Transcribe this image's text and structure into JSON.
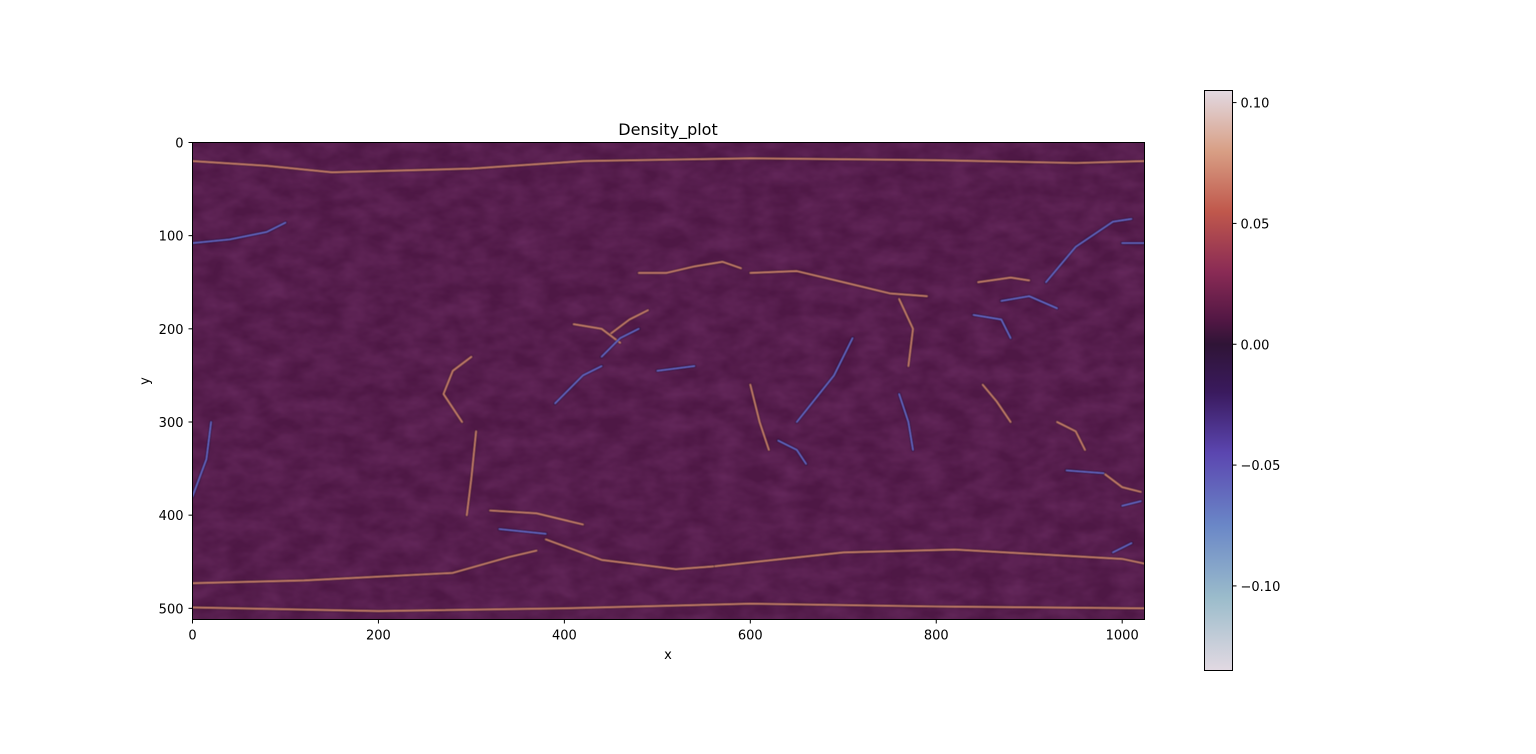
{
  "chart_data": {
    "type": "heatmap",
    "title": "Density_plot",
    "xlabel": "x",
    "ylabel": "y",
    "xlim": [
      0,
      1024
    ],
    "ylim": [
      512,
      0
    ],
    "y_inverted": true,
    "x_ticks": [
      {
        "value": 0,
        "label": "0"
      },
      {
        "value": 200,
        "label": "200"
      },
      {
        "value": 400,
        "label": "400"
      },
      {
        "value": 600,
        "label": "600"
      },
      {
        "value": 800,
        "label": "800"
      },
      {
        "value": 1000,
        "label": "1000"
      }
    ],
    "y_ticks": [
      {
        "value": 0,
        "label": "0"
      },
      {
        "value": 100,
        "label": "100"
      },
      {
        "value": 200,
        "label": "200"
      },
      {
        "value": 300,
        "label": "300"
      },
      {
        "value": 400,
        "label": "400"
      },
      {
        "value": 500,
        "label": "500"
      }
    ],
    "colorbar": {
      "vmin": -0.135,
      "vmax": 0.105,
      "ticks": [
        {
          "value": 0.1,
          "label": "0.10"
        },
        {
          "value": 0.05,
          "label": "0.05"
        },
        {
          "value": 0.0,
          "label": "0.00"
        },
        {
          "value": -0.05,
          "label": "−0.05"
        },
        {
          "value": -0.1,
          "label": "−0.10"
        }
      ],
      "colormap": "twilight-like",
      "colors": [
        {
          "value": -0.135,
          "color": "#e2d9e2"
        },
        {
          "value": -0.105,
          "color": "#9bbccb"
        },
        {
          "value": -0.075,
          "color": "#6a87c7"
        },
        {
          "value": -0.045,
          "color": "#5b46b0"
        },
        {
          "value": -0.02,
          "color": "#3a1a5e"
        },
        {
          "value": 0.0,
          "color": "#2f1436"
        },
        {
          "value": 0.01,
          "color": "#521744"
        },
        {
          "value": 0.03,
          "color": "#8a2b55"
        },
        {
          "value": 0.055,
          "color": "#c0584c"
        },
        {
          "value": 0.08,
          "color": "#d89f85"
        },
        {
          "value": 0.105,
          "color": "#e2d9e2"
        }
      ]
    },
    "background_value": 0.008,
    "background_color": "#4e1845",
    "features": {
      "positive_ridges": [
        [
          [
            0,
            473
          ],
          [
            120,
            470
          ],
          [
            280,
            462
          ],
          [
            340,
            445
          ],
          [
            370,
            438
          ]
        ],
        [
          [
            560,
            455
          ],
          [
            700,
            440
          ],
          [
            820,
            437
          ],
          [
            1000,
            447
          ],
          [
            1024,
            452
          ]
        ],
        [
          [
            380,
            426
          ],
          [
            440,
            448
          ],
          [
            520,
            458
          ],
          [
            560,
            455
          ]
        ],
        [
          [
            0,
            499
          ],
          [
            200,
            503
          ],
          [
            400,
            500
          ],
          [
            600,
            495
          ],
          [
            800,
            498
          ],
          [
            1024,
            500
          ]
        ],
        [
          [
            0,
            20
          ],
          [
            80,
            25
          ],
          [
            150,
            32
          ],
          [
            300,
            28
          ],
          [
            420,
            20
          ],
          [
            600,
            17
          ],
          [
            800,
            19
          ],
          [
            950,
            22
          ],
          [
            1024,
            20
          ]
        ],
        [
          [
            290,
            300
          ],
          [
            270,
            270
          ],
          [
            280,
            245
          ],
          [
            300,
            230
          ]
        ],
        [
          [
            305,
            310
          ],
          [
            300,
            360
          ],
          [
            295,
            400
          ]
        ],
        [
          [
            320,
            395
          ],
          [
            370,
            398
          ],
          [
            420,
            410
          ]
        ],
        [
          [
            450,
            205
          ],
          [
            470,
            190
          ],
          [
            490,
            180
          ]
        ],
        [
          [
            410,
            195
          ],
          [
            440,
            200
          ],
          [
            460,
            215
          ]
        ],
        [
          [
            480,
            140
          ],
          [
            510,
            140
          ],
          [
            540,
            133
          ],
          [
            570,
            128
          ],
          [
            590,
            135
          ]
        ],
        [
          [
            600,
            140
          ],
          [
            650,
            138
          ],
          [
            700,
            150
          ],
          [
            750,
            162
          ],
          [
            790,
            165
          ]
        ],
        [
          [
            845,
            150
          ],
          [
            880,
            145
          ],
          [
            900,
            148
          ]
        ],
        [
          [
            980,
            355
          ],
          [
            1000,
            370
          ],
          [
            1020,
            375
          ]
        ],
        [
          [
            930,
            300
          ],
          [
            950,
            310
          ],
          [
            960,
            330
          ]
        ],
        [
          [
            760,
            168
          ],
          [
            775,
            200
          ],
          [
            770,
            240
          ]
        ],
        [
          [
            600,
            260
          ],
          [
            610,
            300
          ],
          [
            620,
            330
          ]
        ],
        [
          [
            850,
            260
          ],
          [
            865,
            278
          ],
          [
            880,
            300
          ]
        ]
      ],
      "negative_ridges": [
        [
          [
            0,
            108
          ],
          [
            40,
            104
          ],
          [
            80,
            96
          ],
          [
            100,
            86
          ]
        ],
        [
          [
            918,
            150
          ],
          [
            950,
            112
          ],
          [
            990,
            85
          ],
          [
            1010,
            82
          ]
        ],
        [
          [
            1000,
            108
          ],
          [
            1024,
            108
          ]
        ],
        [
          [
            870,
            170
          ],
          [
            900,
            165
          ],
          [
            930,
            178
          ]
        ],
        [
          [
            840,
            185
          ],
          [
            870,
            190
          ],
          [
            880,
            210
          ]
        ],
        [
          [
            440,
            230
          ],
          [
            460,
            210
          ],
          [
            480,
            200
          ]
        ],
        [
          [
            0,
            380
          ],
          [
            15,
            340
          ],
          [
            20,
            300
          ]
        ],
        [
          [
            650,
            300
          ],
          [
            690,
            250
          ],
          [
            710,
            210
          ]
        ],
        [
          [
            630,
            320
          ],
          [
            650,
            330
          ],
          [
            660,
            345
          ]
        ],
        [
          [
            760,
            270
          ],
          [
            770,
            300
          ],
          [
            775,
            330
          ]
        ],
        [
          [
            1000,
            390
          ],
          [
            1020,
            385
          ]
        ],
        [
          [
            940,
            352
          ],
          [
            980,
            355
          ]
        ],
        [
          [
            390,
            280
          ],
          [
            420,
            250
          ],
          [
            440,
            240
          ]
        ],
        [
          [
            330,
            415
          ],
          [
            380,
            420
          ]
        ],
        [
          [
            500,
            245
          ],
          [
            540,
            240
          ]
        ],
        [
          [
            990,
            440
          ],
          [
            1010,
            430
          ]
        ]
      ]
    }
  }
}
